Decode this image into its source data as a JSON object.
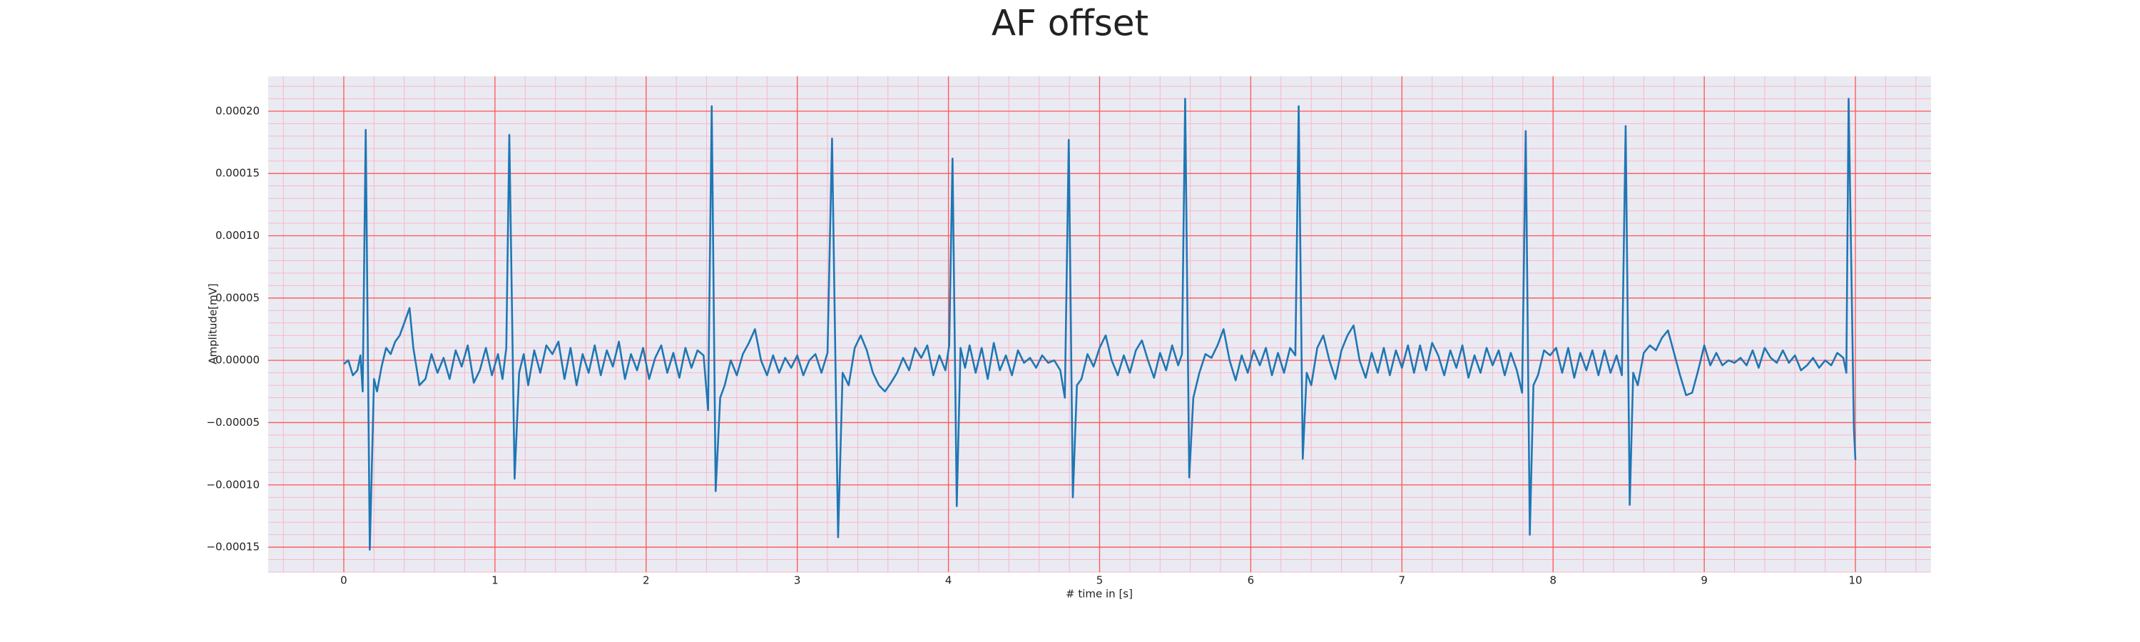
{
  "chart_data": {
    "type": "line",
    "title": "AF offset",
    "xlabel": "# time in [s]",
    "ylabel": "Amplitude[mV]",
    "color": "#1f77b4",
    "grid": true,
    "grid_color": "#ff5555",
    "minor_grid": true,
    "minor_grid_color": "#f7b8c8",
    "background": "#eaeaf2",
    "xlim": [
      -0.5,
      10.5
    ],
    "xticks": [
      0,
      1,
      2,
      3,
      4,
      5,
      6,
      7,
      8,
      9,
      10
    ],
    "ylim": [
      -0.00017,
      0.000228
    ],
    "yticks": [
      {
        "value": -0.00015,
        "label": "−0.00015"
      },
      {
        "value": -0.0001,
        "label": "−0.00010"
      },
      {
        "value": -5e-05,
        "label": "−0.00005"
      },
      {
        "value": 0,
        "label": "0.00000"
      },
      {
        "value": 5e-05,
        "label": "0.00005"
      },
      {
        "value": 0.0001,
        "label": "0.00010"
      },
      {
        "value": 0.00015,
        "label": "0.00015"
      },
      {
        "value": 0.0002,
        "label": "0.00020"
      }
    ],
    "x": [
      0,
      0.03,
      0.06,
      0.09,
      0.11,
      0.125,
      0.145,
      0.172,
      0.2,
      0.22,
      0.25,
      0.28,
      0.31,
      0.34,
      0.37,
      0.4,
      0.435,
      0.46,
      0.5,
      0.54,
      0.58,
      0.62,
      0.66,
      0.7,
      0.74,
      0.78,
      0.82,
      0.86,
      0.9,
      0.94,
      0.98,
      1.02,
      1.05,
      1.075,
      1.095,
      1.13,
      1.16,
      1.19,
      1.22,
      1.26,
      1.3,
      1.34,
      1.38,
      1.42,
      1.46,
      1.5,
      1.54,
      1.58,
      1.62,
      1.66,
      1.7,
      1.74,
      1.78,
      1.82,
      1.86,
      1.9,
      1.94,
      1.98,
      2.02,
      2.06,
      2.1,
      2.14,
      2.18,
      2.22,
      2.26,
      2.3,
      2.34,
      2.38,
      2.41,
      2.434,
      2.46,
      2.49,
      2.52,
      2.56,
      2.6,
      2.64,
      2.68,
      2.72,
      2.76,
      2.8,
      2.84,
      2.88,
      2.92,
      2.96,
      3.0,
      3.04,
      3.08,
      3.12,
      3.16,
      3.2,
      3.23,
      3.27,
      3.3,
      3.34,
      3.38,
      3.42,
      3.46,
      3.5,
      3.54,
      3.58,
      3.62,
      3.66,
      3.7,
      3.74,
      3.78,
      3.82,
      3.86,
      3.9,
      3.94,
      3.98,
      4.005,
      4.027,
      4.055,
      4.08,
      4.11,
      4.14,
      4.18,
      4.22,
      4.26,
      4.3,
      4.34,
      4.38,
      4.42,
      4.46,
      4.5,
      4.54,
      4.58,
      4.62,
      4.66,
      4.7,
      4.74,
      4.77,
      4.796,
      4.823,
      4.85,
      4.88,
      4.92,
      4.96,
      5.0,
      5.04,
      5.08,
      5.12,
      5.16,
      5.2,
      5.24,
      5.28,
      5.32,
      5.36,
      5.4,
      5.44,
      5.48,
      5.52,
      5.545,
      5.566,
      5.593,
      5.62,
      5.66,
      5.7,
      5.74,
      5.78,
      5.82,
      5.86,
      5.9,
      5.94,
      5.98,
      6.02,
      6.06,
      6.1,
      6.14,
      6.18,
      6.22,
      6.26,
      6.295,
      6.317,
      6.344,
      6.37,
      6.4,
      6.44,
      6.48,
      6.52,
      6.56,
      6.6,
      6.64,
      6.68,
      6.72,
      6.76,
      6.8,
      6.84,
      6.88,
      6.92,
      6.96,
      7.0,
      7.04,
      7.08,
      7.12,
      7.16,
      7.2,
      7.24,
      7.28,
      7.32,
      7.36,
      7.4,
      7.44,
      7.48,
      7.52,
      7.56,
      7.6,
      7.64,
      7.68,
      7.72,
      7.76,
      7.795,
      7.819,
      7.846,
      7.87,
      7.9,
      7.94,
      7.98,
      8.02,
      8.06,
      8.1,
      8.14,
      8.18,
      8.22,
      8.26,
      8.3,
      8.34,
      8.38,
      8.42,
      8.455,
      8.48,
      8.507,
      8.53,
      8.56,
      8.6,
      8.64,
      8.68,
      8.72,
      8.76,
      8.8,
      8.84,
      8.88,
      8.92,
      8.96,
      9.0,
      9.04,
      9.08,
      9.12,
      9.16,
      9.2,
      9.24,
      9.28,
      9.32,
      9.36,
      9.4,
      9.44,
      9.48,
      9.52,
      9.56,
      9.6,
      9.64,
      9.68,
      9.72,
      9.76,
      9.8,
      9.84,
      9.88,
      9.92,
      9.94,
      9.955,
      9.99,
      10.0
    ],
    "values": [
      -3e-06,
      0,
      -1.2e-05,
      -8e-06,
      4e-06,
      -2.5e-05,
      0.000185,
      -0.000152,
      -1.5e-05,
      -2.5e-05,
      -5e-06,
      1e-05,
      5e-06,
      1.5e-05,
      2e-05,
      3e-05,
      4.2e-05,
      1e-05,
      -2e-05,
      -1.5e-05,
      5e-06,
      -1e-05,
      2e-06,
      -1.5e-05,
      8e-06,
      -5e-06,
      1.2e-05,
      -1.8e-05,
      -8e-06,
      1e-05,
      -1.2e-05,
      5e-06,
      -1.5e-05,
      1e-05,
      0.000181,
      -9.5e-05,
      -1e-05,
      5e-06,
      -2e-05,
      8e-06,
      -1e-05,
      1.2e-05,
      5e-06,
      1.5e-05,
      -1.5e-05,
      1e-05,
      -2e-05,
      5e-06,
      -1e-05,
      1.2e-05,
      -1.2e-05,
      8e-06,
      -5e-06,
      1.5e-05,
      -1.5e-05,
      5e-06,
      -8e-06,
      1e-05,
      -1.5e-05,
      2e-06,
      1.2e-05,
      -1e-05,
      6e-06,
      -1.4e-05,
      1e-05,
      -6e-06,
      8e-06,
      4e-06,
      -4e-05,
      0.000204,
      -0.000105,
      -3e-05,
      -2e-05,
      0,
      -1.2e-05,
      5e-06,
      1.4e-05,
      2.5e-05,
      0,
      -1.2e-05,
      4e-06,
      -1e-05,
      2e-06,
      -6e-06,
      4e-06,
      -1.2e-05,
      0,
      5e-06,
      -1e-05,
      6e-06,
      0.000178,
      -0.000142,
      -1e-05,
      -2e-05,
      1e-05,
      2e-05,
      8e-06,
      -1e-05,
      -2e-05,
      -2.5e-05,
      -1.8e-05,
      -1e-05,
      2e-06,
      -8e-06,
      1e-05,
      2e-06,
      1.2e-05,
      -1.2e-05,
      4e-06,
      -8e-06,
      1.2e-05,
      0.000162,
      -0.000117,
      1e-05,
      -6e-06,
      1.2e-05,
      -1e-05,
      1e-05,
      -1.5e-05,
      1.4e-05,
      -8e-06,
      4e-06,
      -1.2e-05,
      8e-06,
      -2e-06,
      2e-06,
      -6e-06,
      4e-06,
      -2e-06,
      0,
      -8e-06,
      -3e-05,
      0.000177,
      -0.00011,
      -2e-05,
      -1.5e-05,
      5e-06,
      -5e-06,
      1e-05,
      2e-05,
      0,
      -1.2e-05,
      4e-06,
      -1e-05,
      8e-06,
      1.6e-05,
      0,
      -1.4e-05,
      6e-06,
      -8e-06,
      1.2e-05,
      -4e-06,
      5e-06,
      0.00021,
      -9.4e-05,
      -3e-05,
      -1e-05,
      5e-06,
      2e-06,
      1.2e-05,
      2.5e-05,
      0,
      -1.6e-05,
      4e-06,
      -1e-05,
      8e-06,
      -4e-06,
      1e-05,
      -1.2e-05,
      6e-06,
      -1e-05,
      1e-05,
      4e-06,
      0.000204,
      -7.9e-05,
      -1e-05,
      -2e-05,
      1e-05,
      2e-05,
      0,
      -1.5e-05,
      8e-06,
      2e-05,
      2.8e-05,
      0,
      -1.4e-05,
      6e-06,
      -1e-05,
      1e-05,
      -1.2e-05,
      8e-06,
      -6e-06,
      1.2e-05,
      -1e-05,
      1.2e-05,
      -8e-06,
      1.4e-05,
      4e-06,
      -1.2e-05,
      8e-06,
      -6e-06,
      1.2e-05,
      -1.4e-05,
      4e-06,
      -1e-05,
      1e-05,
      -4e-06,
      8e-06,
      -1.2e-05,
      6e-06,
      -8e-06,
      -2.6e-05,
      0.000184,
      -0.00014,
      -2e-05,
      -1.2e-05,
      8e-06,
      4e-06,
      1e-05,
      -1e-05,
      1e-05,
      -1.4e-05,
      6e-06,
      -8e-06,
      8e-06,
      -1.2e-05,
      8e-06,
      -1e-05,
      4e-06,
      -1.2e-05,
      0.000188,
      -0.000116,
      -1e-05,
      -2e-05,
      6e-06,
      1.2e-05,
      8e-06,
      1.8e-05,
      2.4e-05,
      6e-06,
      -1.2e-05,
      -2.8e-05,
      -2.6e-05,
      -8e-06,
      1.2e-05,
      -4e-06,
      6e-06,
      -4e-06,
      0,
      -2e-06,
      2e-06,
      -4e-06,
      8e-06,
      -6e-06,
      1e-05,
      2e-06,
      -2e-06,
      8e-06,
      -2e-06,
      4e-06,
      -8e-06,
      -4e-06,
      2e-06,
      -6e-06,
      0,
      -4e-06,
      6e-06,
      2e-06,
      -1e-05,
      0.00021,
      -5.5e-05,
      -8e-05
    ]
  }
}
